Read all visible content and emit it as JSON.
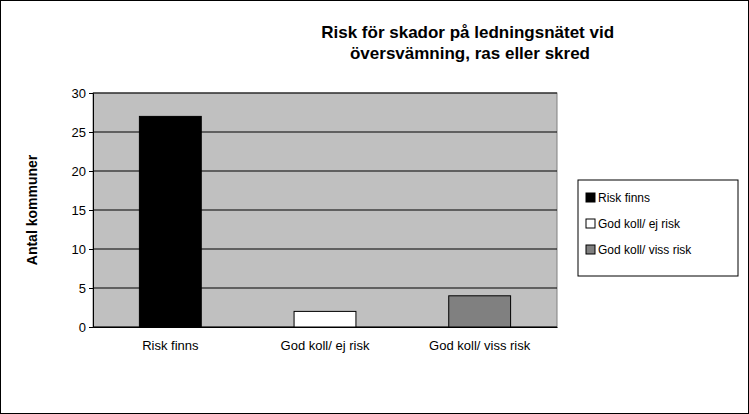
{
  "chart_data": {
    "type": "bar",
    "title": "Risk för skador på ledningsnätet vid översvämning, ras eller skred",
    "y_label": "Antal kommuner",
    "categories": [
      "Risk finns",
      "God koll/ ej risk",
      "God koll/ viss risk"
    ],
    "values": [
      27,
      2,
      4
    ],
    "colors": [
      "#000000",
      "#ffffff",
      "#808080"
    ],
    "ylim": [
      0,
      30
    ],
    "yticks": [
      0,
      5,
      10,
      15,
      20,
      25,
      30
    ],
    "grid": true,
    "legend": "right"
  }
}
